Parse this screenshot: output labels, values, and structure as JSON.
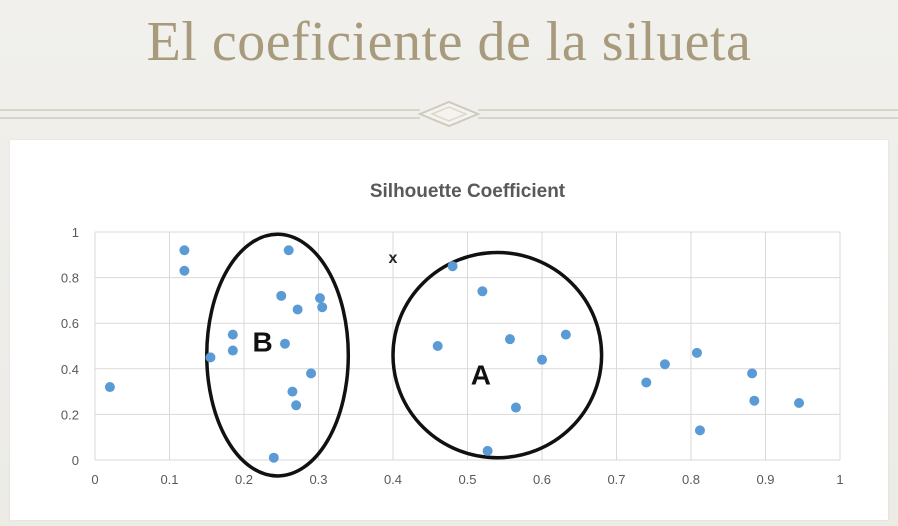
{
  "slide": {
    "title": "El coeficiente de la silueta"
  },
  "chart_data": {
    "type": "scatter",
    "title": "Silhouette Coefficient",
    "xlabel": "",
    "ylabel": "",
    "xlim": [
      0,
      1
    ],
    "ylim": [
      0,
      1
    ],
    "x_ticks": [
      "0",
      "0.1",
      "0.2",
      "0.3",
      "0.4",
      "0.5",
      "0.6",
      "0.7",
      "0.8",
      "0.9",
      "1"
    ],
    "y_ticks": [
      "0",
      "0.2",
      "0.4",
      "0.6",
      "0.8",
      "1"
    ],
    "grid": true,
    "point_color": "#5b9bd5",
    "series": [
      {
        "points": [
          {
            "x": 0.02,
            "y": 0.32
          },
          {
            "x": 0.12,
            "y": 0.92
          },
          {
            "x": 0.12,
            "y": 0.83
          },
          {
            "x": 0.155,
            "y": 0.45
          },
          {
            "x": 0.185,
            "y": 0.55
          },
          {
            "x": 0.185,
            "y": 0.48
          },
          {
            "x": 0.24,
            "y": 0.01
          },
          {
            "x": 0.25,
            "y": 0.72
          },
          {
            "x": 0.255,
            "y": 0.51
          },
          {
            "x": 0.26,
            "y": 0.92
          },
          {
            "x": 0.265,
            "y": 0.3
          },
          {
            "x": 0.27,
            "y": 0.24
          },
          {
            "x": 0.272,
            "y": 0.66
          },
          {
            "x": 0.29,
            "y": 0.38
          },
          {
            "x": 0.302,
            "y": 0.71
          },
          {
            "x": 0.305,
            "y": 0.67
          },
          {
            "x": 0.46,
            "y": 0.5
          },
          {
            "x": 0.48,
            "y": 0.85
          },
          {
            "x": 0.52,
            "y": 0.74
          },
          {
            "x": 0.527,
            "y": 0.04
          },
          {
            "x": 0.557,
            "y": 0.53
          },
          {
            "x": 0.565,
            "y": 0.23
          },
          {
            "x": 0.6,
            "y": 0.44
          },
          {
            "x": 0.632,
            "y": 0.55
          },
          {
            "x": 0.74,
            "y": 0.34
          },
          {
            "x": 0.765,
            "y": 0.42
          },
          {
            "x": 0.808,
            "y": 0.47
          },
          {
            "x": 0.812,
            "y": 0.13
          },
          {
            "x": 0.882,
            "y": 0.38
          },
          {
            "x": 0.885,
            "y": 0.26
          },
          {
            "x": 0.945,
            "y": 0.25
          }
        ]
      }
    ],
    "annotations": [
      {
        "label": "B",
        "kind": "cluster-ellipse",
        "cx": 0.245,
        "cy": 0.46,
        "rx": 0.095,
        "ry": 0.53,
        "label_x": 0.225,
        "label_y": 0.52
      },
      {
        "label": "A",
        "kind": "cluster-ellipse",
        "cx": 0.54,
        "cy": 0.46,
        "rx": 0.14,
        "ry": 0.45,
        "label_x": 0.518,
        "label_y": 0.375
      },
      {
        "label": "x",
        "kind": "marker",
        "x": 0.4,
        "y": 0.89
      }
    ]
  }
}
